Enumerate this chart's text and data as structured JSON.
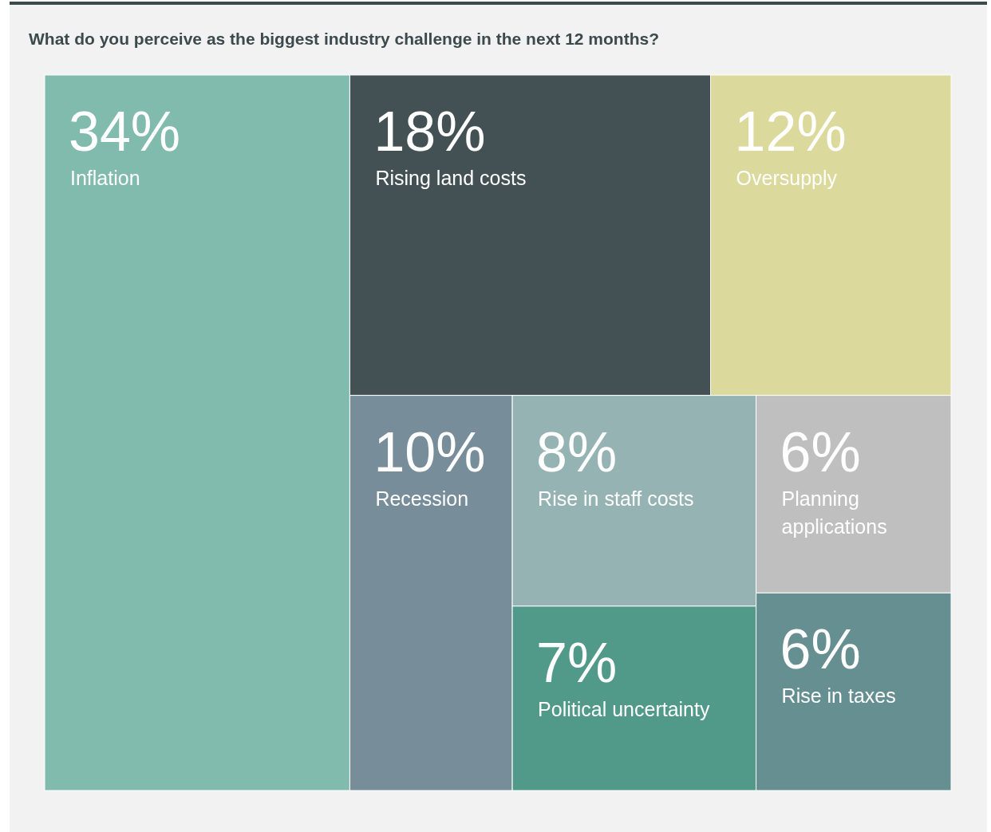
{
  "chart_data": {
    "type": "other",
    "title": "What do you perceive as the biggest industry challenge in the next 12 months?",
    "categories": [
      "Inflation",
      "Rising land costs",
      "Oversupply",
      "Recession",
      "Rise in staff costs",
      "Political uncertainty",
      "Planning applications",
      "Rise in taxes"
    ],
    "values": [
      34,
      18,
      12,
      10,
      8,
      7,
      6,
      6
    ],
    "value_labels": [
      "34%",
      "18%",
      "12%",
      "10%",
      "8%",
      "7%",
      "6%",
      "6%"
    ],
    "colors": [
      "#81bbad",
      "#435054",
      "#dbd99b",
      "#778d9a",
      "#96b3b4",
      "#519a89",
      "#bfbfbf",
      "#668f91"
    ]
  }
}
